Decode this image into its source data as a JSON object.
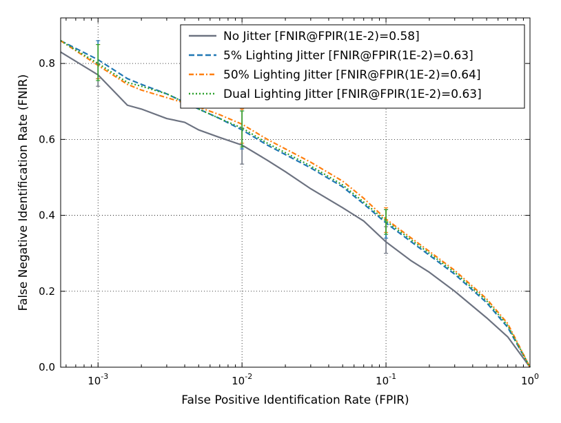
{
  "chart_data": {
    "type": "line",
    "xlabel": "False Positive Identification Rate (FPIR)",
    "ylabel": "False Negative Identification Rate (FNIR)",
    "xscale": "log",
    "xlim": [
      0.00055,
      1.0
    ],
    "ylim": [
      0.0,
      0.92
    ],
    "x_ticks": [
      {
        "value": 0.001,
        "base": "10",
        "exp": "-3"
      },
      {
        "value": 0.01,
        "base": "10",
        "exp": "-2"
      },
      {
        "value": 0.1,
        "base": "10",
        "exp": "-1"
      },
      {
        "value": 1.0,
        "base": "10",
        "exp": "0"
      }
    ],
    "y_ticks": [
      {
        "value": 0.0,
        "label": "0.0"
      },
      {
        "value": 0.2,
        "label": "0.2"
      },
      {
        "value": 0.4,
        "label": "0.4"
      },
      {
        "value": 0.6,
        "label": "0.6"
      },
      {
        "value": 0.8,
        "label": "0.8"
      }
    ],
    "grid": true,
    "legend_position": "top-right",
    "series": [
      {
        "name": "No Jitter [FNIR@FPIR(1E-2)=0.58]",
        "color": "#6c7280",
        "dash": "solid",
        "x": [
          0.00055,
          0.001,
          0.0016,
          0.002,
          0.003,
          0.004,
          0.005,
          0.007,
          0.01,
          0.015,
          0.02,
          0.03,
          0.05,
          0.07,
          0.1,
          0.15,
          0.2,
          0.3,
          0.5,
          0.7,
          1.0
        ],
        "y": [
          0.83,
          0.77,
          0.69,
          0.68,
          0.655,
          0.645,
          0.625,
          0.605,
          0.585,
          0.545,
          0.515,
          0.47,
          0.42,
          0.385,
          0.33,
          0.28,
          0.25,
          0.2,
          0.13,
          0.08,
          0.0
        ],
        "error_bars": [
          {
            "x": 0.001,
            "y": 0.775,
            "low": 0.74,
            "high": 0.8
          },
          {
            "x": 0.01,
            "y": 0.585,
            "low": 0.535,
            "high": 0.63
          },
          {
            "x": 0.1,
            "y": 0.33,
            "low": 0.3,
            "high": 0.37
          }
        ]
      },
      {
        "name": "5% Lighting Jitter [FNIR@FPIR(1E-2)=0.63]",
        "color": "#1f77b4",
        "dash": "dashed",
        "x": [
          0.00055,
          0.001,
          0.0016,
          0.002,
          0.003,
          0.005,
          0.007,
          0.01,
          0.015,
          0.02,
          0.03,
          0.05,
          0.07,
          0.1,
          0.15,
          0.2,
          0.3,
          0.5,
          0.7,
          1.0
        ],
        "y": [
          0.86,
          0.81,
          0.76,
          0.745,
          0.72,
          0.68,
          0.655,
          0.625,
          0.585,
          0.56,
          0.525,
          0.475,
          0.43,
          0.38,
          0.33,
          0.295,
          0.245,
          0.17,
          0.105,
          0.0
        ],
        "error_bars": [
          {
            "x": 0.001,
            "y": 0.81,
            "low": 0.76,
            "high": 0.86
          },
          {
            "x": 0.01,
            "y": 0.625,
            "low": 0.575,
            "high": 0.675
          },
          {
            "x": 0.1,
            "y": 0.38,
            "low": 0.34,
            "high": 0.415
          }
        ]
      },
      {
        "name": "50% Lighting Jitter [FNIR@FPIR(1E-2)=0.64]",
        "color": "#ff7f0e",
        "dash": "dashdot",
        "x": [
          0.00055,
          0.001,
          0.0016,
          0.002,
          0.003,
          0.005,
          0.007,
          0.01,
          0.015,
          0.02,
          0.03,
          0.05,
          0.07,
          0.1,
          0.15,
          0.2,
          0.3,
          0.5,
          0.7,
          1.0
        ],
        "y": [
          0.86,
          0.795,
          0.745,
          0.73,
          0.71,
          0.685,
          0.665,
          0.64,
          0.6,
          0.575,
          0.54,
          0.49,
          0.445,
          0.39,
          0.34,
          0.305,
          0.255,
          0.18,
          0.115,
          0.0
        ],
        "error_bars": [
          {
            "x": 0.001,
            "y": 0.8,
            "low": 0.76,
            "high": 0.85
          },
          {
            "x": 0.01,
            "y": 0.64,
            "low": 0.59,
            "high": 0.68
          },
          {
            "x": 0.1,
            "y": 0.39,
            "low": 0.355,
            "high": 0.42
          }
        ]
      },
      {
        "name": "Dual Lighting Jitter [FNIR@FPIR(1E-2)=0.63]",
        "color": "#2ca02c",
        "dash": "dotted",
        "x": [
          0.00055,
          0.001,
          0.0016,
          0.002,
          0.003,
          0.005,
          0.007,
          0.01,
          0.015,
          0.02,
          0.03,
          0.05,
          0.07,
          0.1,
          0.15,
          0.2,
          0.3,
          0.5,
          0.7,
          1.0
        ],
        "y": [
          0.86,
          0.8,
          0.75,
          0.74,
          0.72,
          0.68,
          0.655,
          0.63,
          0.59,
          0.565,
          0.53,
          0.48,
          0.435,
          0.385,
          0.335,
          0.3,
          0.25,
          0.175,
          0.11,
          0.0
        ],
        "error_bars": [
          {
            "x": 0.001,
            "y": 0.8,
            "low": 0.755,
            "high": 0.85
          },
          {
            "x": 0.01,
            "y": 0.63,
            "low": 0.58,
            "high": 0.675
          },
          {
            "x": 0.1,
            "y": 0.385,
            "low": 0.35,
            "high": 0.415
          }
        ]
      }
    ]
  }
}
